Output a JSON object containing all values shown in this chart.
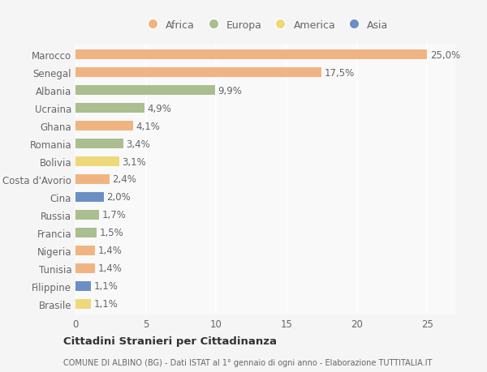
{
  "countries": [
    "Marocco",
    "Senegal",
    "Albania",
    "Ucraina",
    "Ghana",
    "Romania",
    "Bolivia",
    "Costa d'Avorio",
    "Cina",
    "Russia",
    "Francia",
    "Nigeria",
    "Tunisia",
    "Filippine",
    "Brasile"
  ],
  "values": [
    25.0,
    17.5,
    9.9,
    4.9,
    4.1,
    3.4,
    3.1,
    2.4,
    2.0,
    1.7,
    1.5,
    1.4,
    1.4,
    1.1,
    1.1
  ],
  "labels": [
    "25,0%",
    "17,5%",
    "9,9%",
    "4,9%",
    "4,1%",
    "3,4%",
    "3,1%",
    "2,4%",
    "2,0%",
    "1,7%",
    "1,5%",
    "1,4%",
    "1,4%",
    "1,1%",
    "1,1%"
  ],
  "continents": [
    "Africa",
    "Africa",
    "Europa",
    "Europa",
    "Africa",
    "Europa",
    "America",
    "Africa",
    "Asia",
    "Europa",
    "Europa",
    "Africa",
    "Africa",
    "Asia",
    "America"
  ],
  "colors": {
    "Africa": "#F0B482",
    "Europa": "#ABBE8F",
    "America": "#EDD97A",
    "Asia": "#6B8FC4"
  },
  "xlim": [
    0,
    27
  ],
  "background_color": "#f5f5f5",
  "plot_bg_color": "#f9f9f9",
  "title": "Cittadini Stranieri per Cittadinanza",
  "subtitle": "COMUNE DI ALBINO (BG) - Dati ISTAT al 1° gennaio di ogni anno - Elaborazione TUTTITALIA.IT",
  "bar_height": 0.55,
  "grid_color": "#ffffff",
  "label_fontsize": 8.5,
  "tick_fontsize": 8.5,
  "legend_entries": [
    "Africa",
    "Europa",
    "America",
    "Asia"
  ]
}
